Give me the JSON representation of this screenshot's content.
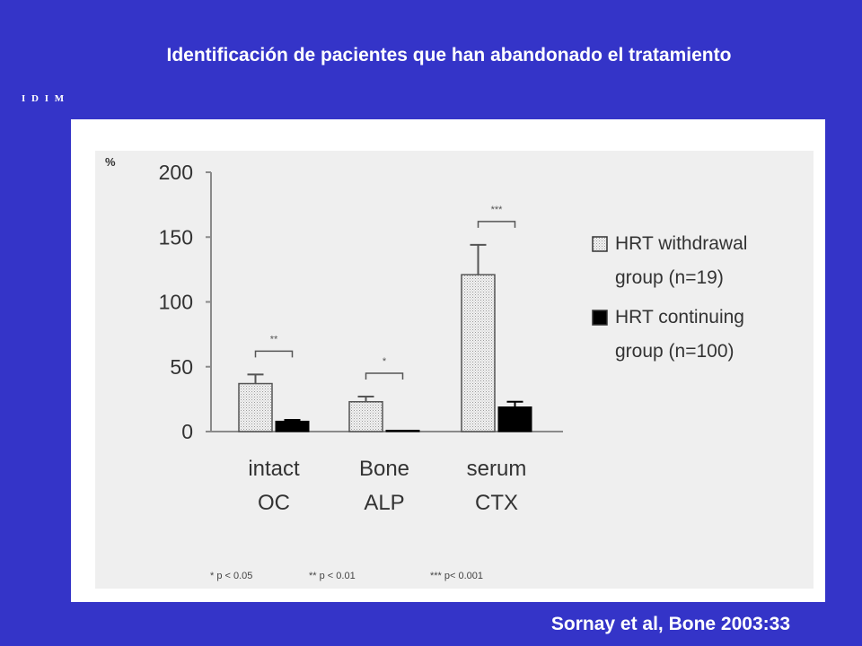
{
  "slide": {
    "title": "Identificación de pacientes que han abandonado el tratamiento",
    "logo_text": "I D I M",
    "citation": "Sornay et al, Bone 2003:33",
    "background_color": "#3434c8",
    "text_color": "#ffffff"
  },
  "chart_data": {
    "type": "bar",
    "ylabel": "%",
    "ylim": [
      0,
      200
    ],
    "yticks": [
      0,
      50,
      100,
      150,
      200
    ],
    "categories": [
      [
        "intact",
        "OC"
      ],
      [
        "Bone",
        "ALP"
      ],
      [
        "serum",
        "CTX"
      ]
    ],
    "series": [
      {
        "name_lines": [
          "HRT withdrawal",
          "group (n=19)"
        ],
        "values": [
          37,
          23,
          121
        ],
        "errors": [
          7,
          4,
          23
        ],
        "fill": "dotted-gray"
      },
      {
        "name_lines": [
          "HRT continuing",
          "group (n=100)"
        ],
        "values": [
          8,
          1,
          19
        ],
        "errors": [
          1,
          0,
          4
        ],
        "fill": "#000000"
      }
    ],
    "significance": [
      "**",
      "*",
      "***"
    ],
    "footnote": [
      "* p < 0.05",
      "** p < 0.01",
      "*** p< 0.001"
    ],
    "legend_position": "right",
    "grid": false
  }
}
